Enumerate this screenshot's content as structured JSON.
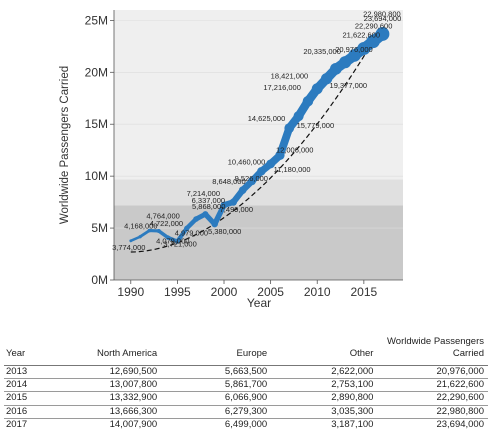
{
  "chart_data": {
    "type": "line",
    "xlabel": "Year",
    "ylabel": "Worldwide Passengers Carried",
    "xlim": [
      1988.2,
      2019.2
    ],
    "ylim": [
      0,
      26000000
    ],
    "x_ticks": [
      1990,
      1995,
      2000,
      2005,
      2010,
      2015
    ],
    "x_tick_labels": [
      "1990",
      "1995",
      "2000",
      "2005",
      "2010",
      "2015"
    ],
    "y_ticks": [
      0,
      5000000,
      10000000,
      15000000,
      20000000,
      25000000
    ],
    "y_tick_labels": [
      "0M",
      "5M",
      "10M",
      "15M",
      "20M",
      "25M"
    ],
    "bands": [
      {
        "from": 0,
        "to": 7200000,
        "color": "#c9c9c9"
      },
      {
        "from": 7200000,
        "to": 9700000,
        "color": "#e0e0e0"
      },
      {
        "from": 9700000,
        "to": 26000000,
        "color": "#efefef"
      }
    ],
    "line_color": "#2c7bbf",
    "trend_color": "#111111",
    "series": [
      {
        "x": [
          1990,
          1991,
          1992,
          1993,
          1994,
          1995,
          1996,
          1997,
          1998,
          1999,
          2000,
          2001,
          2002,
          2003,
          2004,
          2005,
          2006,
          2007,
          2008,
          2009,
          2010,
          2011,
          2012,
          2013,
          2014,
          2015,
          2016,
          2017
        ],
        "values": [
          3774000,
          4168000,
          4764000,
          4722000,
          4079000,
          3721000,
          4979000,
          5868000,
          6337000,
          5380000,
          7214000,
          7499000,
          8648000,
          9526000,
          10460000,
          11180000,
          12006000,
          14625000,
          15779000,
          17216000,
          18421000,
          19377000,
          20335000,
          20976000,
          21622600,
          22290600,
          22980800,
          23694000
        ],
        "labels": [
          "3,774,000",
          "4,168,000",
          "4,764,000",
          "4,722,000",
          "4,079,000",
          "3,721,000",
          "4,979,000",
          "5,868,000",
          "6,337,000",
          "5,380,000",
          "7,214,000",
          "7,499,000",
          "8,648,000",
          "9,526,000",
          "10,460,000",
          "11,180,000",
          "12,006,000",
          "14,625,000",
          "15,779,000",
          "17,216,000",
          "18,421,000",
          "19,377,000",
          "20,335,000",
          "20,976,000",
          "21,622,600",
          "22,290,600",
          "22,980,800",
          "23,694,000"
        ]
      }
    ],
    "trend": {
      "x0": 1990,
      "y0": 2700000,
      "x1": 2017,
      "y1": 24500000,
      "power": 1.9
    }
  },
  "table": {
    "headers": [
      "Year",
      "North America",
      "Europe",
      "Other",
      "Worldwide Passengers Carried"
    ],
    "rows": [
      [
        "2013",
        "12,690,500",
        "5,663,500",
        "2,622,000",
        "20,976,000"
      ],
      [
        "2014",
        "13,007,800",
        "5,861,700",
        "2,753,100",
        "21,622,600"
      ],
      [
        "2015",
        "13,332,900",
        "6,066,900",
        "2,890,800",
        "22,290,600"
      ],
      [
        "2016",
        "13,666,300",
        "6,279,300",
        "3,035,300",
        "22,980,800"
      ],
      [
        "2017",
        "14,007,900",
        "6,499,000",
        "3,187,100",
        "23,694,000"
      ]
    ]
  }
}
